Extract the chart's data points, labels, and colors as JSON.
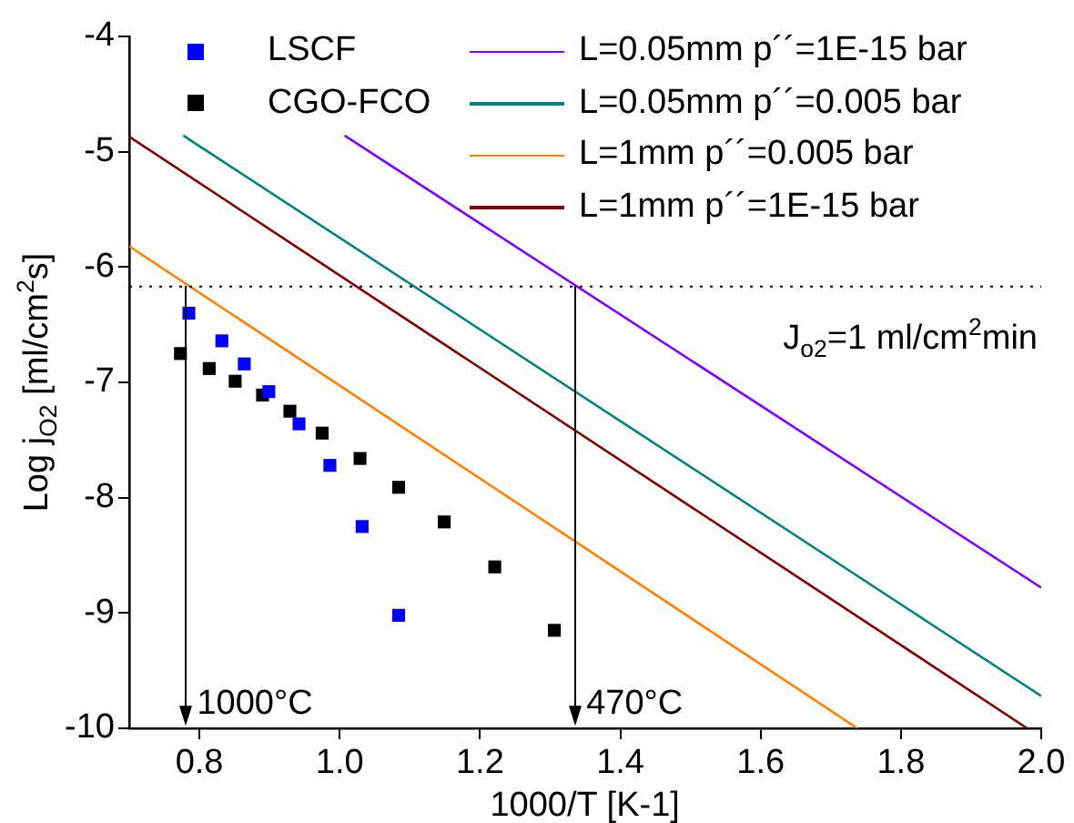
{
  "chart_data": {
    "type": "scatter",
    "xlabel": "1000/T [K-1]",
    "ylabel": "Log j$_{O2}$ [ml/cm$^{2}$s]",
    "xlim": [
      0.7,
      2.0
    ],
    "xticks": [
      0.8,
      {
        "value": 1,
        "label": "1.0"
      },
      1.2,
      1.4,
      1.6,
      1.8,
      {
        "value": 2,
        "label": "2.0"
      }
    ],
    "ylim": [
      -10,
      -4
    ],
    "yticks": [
      -10,
      -9,
      -8,
      -7,
      -6,
      -5,
      -4
    ],
    "annotations": [
      "J$_{o2}$=1 ml/cm$^{2}$min"
    ],
    "grid": false,
    "legend": "top",
    "marker": "square",
    "series": [
      {
        "name": "LSCF",
        "color": "#0000ff",
        "x": [
          0.785,
          0.832,
          0.864,
          0.899,
          0.942,
          0.986,
          1.032,
          1.084
        ],
        "values": [
          -6.4,
          -6.64,
          -6.84,
          -7.08,
          -7.36,
          -7.72,
          -8.25,
          -9.02
        ]
      },
      {
        "name": "CGO-FCO",
        "color": "#000000",
        "x": [
          0.773,
          0.814,
          0.851,
          0.89,
          0.929,
          0.975,
          1.029,
          1.084,
          1.149,
          1.221,
          1.306
        ],
        "values": [
          -6.75,
          -6.88,
          -6.99,
          -7.11,
          -7.25,
          -7.44,
          -7.66,
          -7.91,
          -8.21,
          -8.6,
          -9.15
        ]
      },
      {
        "name": "L=0.05mm p´´=1E-15 bar",
        "type": "line",
        "marker": "none",
        "color": "#8000ff",
        "x": [
          1.007,
          2.0
        ],
        "values": [
          -4.86,
          -8.78
        ]
      },
      {
        "name": "L=0.05mm p´´=0.005 bar",
        "type": "line",
        "marker": "none",
        "color": "#008080",
        "x": [
          0.777,
          2.0
        ],
        "values": [
          -4.86,
          -9.72
        ]
      },
      {
        "name": "L=1mm p´´=0.005 bar",
        "type": "line",
        "marker": "none",
        "color": "#ff8000",
        "x": [
          0.7,
          1.738
        ],
        "values": [
          -5.82,
          -10
        ]
      },
      {
        "name": "L=1mm p´´=1E-15 bar",
        "type": "line",
        "marker": "none",
        "color": "#800000",
        "x": [
          0.7,
          1.98
        ],
        "values": [
          -4.87,
          -10
        ]
      }
    ],
    "ref_lines": [
      {
        "axis": "y",
        "value": -6.17,
        "color": "#000000",
        "line_style": "dotted"
      },
      {
        "axis": "x",
        "value": 0.781,
        "label": "1000°C",
        "color": "#000000",
        "line_style": "solid"
      },
      {
        "axis": "x",
        "value": 1.336,
        "label": "470°C",
        "color": "#000000",
        "line_style": "solid"
      }
    ]
  }
}
